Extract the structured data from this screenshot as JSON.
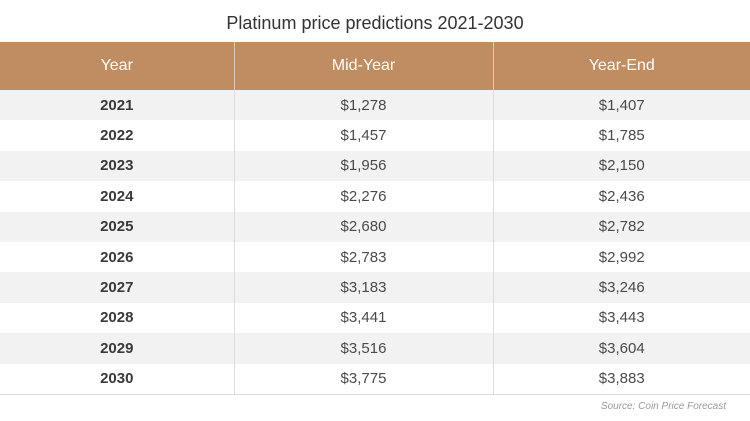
{
  "title": "Platinum price predictions 2021-2030",
  "header": {
    "year": "Year",
    "mid_year": "Mid-Year",
    "year_end": "Year-End"
  },
  "rows": [
    {
      "year": "2021",
      "mid_year": "$1,278",
      "year_end": "$1,407"
    },
    {
      "year": "2022",
      "mid_year": "$1,457",
      "year_end": "$1,785"
    },
    {
      "year": "2023",
      "mid_year": "$1,956",
      "year_end": "$2,150"
    },
    {
      "year": "2024",
      "mid_year": "$2,276",
      "year_end": "$2,436"
    },
    {
      "year": "2025",
      "mid_year": "$2,680",
      "year_end": "$2,782"
    },
    {
      "year": "2026",
      "mid_year": "$2,783",
      "year_end": "$2,992"
    },
    {
      "year": "2027",
      "mid_year": "$3,183",
      "year_end": "$3,246"
    },
    {
      "year": "2028",
      "mid_year": "$3,441",
      "year_end": "$3,443"
    },
    {
      "year": "2029",
      "mid_year": "$3,516",
      "year_end": "$3,604"
    },
    {
      "year": "2030",
      "mid_year": "$3,775",
      "year_end": "$3,883"
    }
  ],
  "source": "Source: Coin Price Forecast",
  "colors": {
    "header_bg": "#c08d63",
    "header_text": "#ffffff",
    "stripe": "#f2f2f2"
  }
}
